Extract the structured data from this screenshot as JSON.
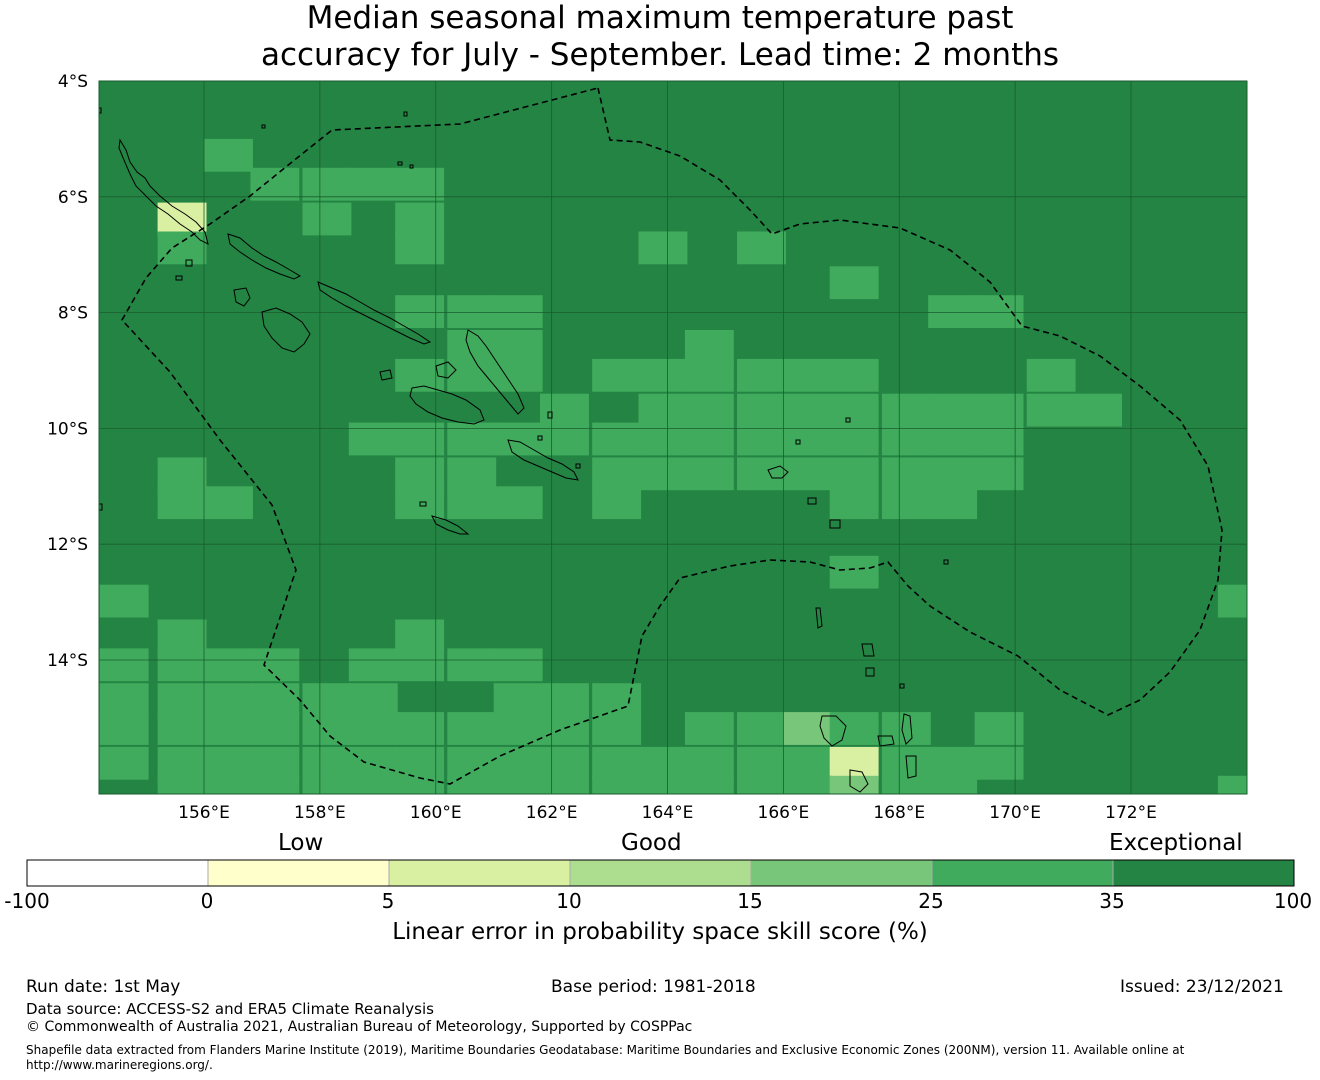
{
  "title": {
    "line1": "Median seasonal maximum temperature past",
    "line2": "accuracy for July - September. Lead time: 2 months"
  },
  "map": {
    "lon_range": [
      154.2,
      174.0
    ],
    "lat_range": [
      -4.0,
      -16.3
    ],
    "lat_ticks": [
      {
        "value": -4,
        "label": "4°S"
      },
      {
        "value": -6,
        "label": "6°S"
      },
      {
        "value": -8,
        "label": "8°S"
      },
      {
        "value": -10,
        "label": "10°S"
      },
      {
        "value": -12,
        "label": "12°S"
      },
      {
        "value": -14,
        "label": "14°S"
      }
    ],
    "lon_ticks": [
      {
        "value": 156,
        "label": "156°E"
      },
      {
        "value": 158,
        "label": "158°E"
      },
      {
        "value": 160,
        "label": "160°E"
      },
      {
        "value": 162,
        "label": "162°E"
      },
      {
        "value": 164,
        "label": "164°E"
      },
      {
        "value": 166,
        "label": "166°E"
      },
      {
        "value": 168,
        "label": "168°E"
      },
      {
        "value": 170,
        "label": "170°E"
      },
      {
        "value": 172,
        "label": "172°E"
      }
    ],
    "colors": {
      "background": "#238443",
      "grid": "#1a5c2e",
      "eez": "#000000",
      "coast": "#000000"
    }
  },
  "colorbar": {
    "words": [
      "Low",
      "Good",
      "Exceptional"
    ],
    "bins": [
      {
        "from": -100,
        "to": 0,
        "color": "#ffffff"
      },
      {
        "from": 0,
        "to": 5,
        "color": "#ffffcc"
      },
      {
        "from": 5,
        "to": 10,
        "color": "#d9f0a3"
      },
      {
        "from": 10,
        "to": 15,
        "color": "#addd8e"
      },
      {
        "from": 15,
        "to": 25,
        "color": "#78c679"
      },
      {
        "from": 25,
        "to": 35,
        "color": "#41ab5d"
      },
      {
        "from": 35,
        "to": 100,
        "color": "#238443"
      }
    ],
    "tick_labels": [
      "-100",
      "0",
      "5",
      "10",
      "15",
      "25",
      "35",
      "100"
    ],
    "label": "Linear error in probability space skill score (%)"
  },
  "footer": {
    "run_date": "Run date: 1st May",
    "base_period": "Base period: 1981-2018",
    "issued": "Issued: 23/12/2021",
    "data_source": "Data source: ACCESS-S2 and ERA5 Climate Reanalysis",
    "copyright": "© Commonwealth of Australia 2021, Australian Bureau of Meteorology, Supported by COSPPac",
    "shapefile_line1": "Shapefile data extracted from Flanders Marine Institute (2019), Maritime Boundaries Geodatabase: Maritime Boundaries and Exclusive Economic Zones (200NM), version 11. Available online at",
    "shapefile_line2": "http://www.marineregions.org/."
  },
  "grid_cells": {
    "lon0": 154.2,
    "lat0": -4.0,
    "dlon": 0.833,
    "dlat": 0.556,
    "c25": [
      [
        5,
        2
      ],
      [
        6,
        2
      ],
      [
        7,
        2
      ],
      [
        8,
        2
      ],
      [
        9,
        2
      ],
      [
        10,
        2
      ],
      [
        11,
        2
      ],
      [
        12,
        2
      ],
      [
        13,
        2
      ],
      [
        14,
        2
      ],
      [
        15,
        2
      ],
      [
        16,
        2
      ],
      [
        17,
        2
      ],
      [
        18,
        2
      ],
      [
        19,
        2
      ],
      [
        20,
        2
      ],
      [
        21,
        2
      ],
      [
        22,
        2
      ],
      [
        23,
        2
      ],
      [
        24,
        2
      ],
      [
        25,
        2
      ],
      [
        26,
        2
      ],
      [
        27,
        2
      ],
      [
        28,
        2
      ],
      [
        29,
        2
      ],
      [
        30,
        2
      ],
      [
        31,
        2
      ],
      [
        32,
        2
      ],
      [
        33,
        2
      ],
      [
        34,
        2
      ],
      [
        35,
        2
      ],
      [
        36,
        2
      ],
      [
        37,
        2
      ],
      [
        38,
        2
      ],
      [
        39,
        2
      ],
      [
        40,
        2
      ],
      [
        41,
        2
      ],
      [
        42,
        2
      ],
      [
        43,
        2
      ],
      [
        44,
        2
      ],
      [
        45,
        2
      ],
      [
        46,
        2
      ],
      [
        47,
        2
      ],
      [
        48,
        2
      ],
      [
        49,
        2
      ],
      [
        50,
        2
      ],
      [
        51,
        2
      ],
      [
        52,
        2
      ],
      [
        53,
        2
      ],
      [
        54,
        2
      ],
      [
        55,
        2
      ],
      [
        56,
        2
      ],
      [
        57,
        2
      ],
      [
        58,
        2
      ],
      [
        59,
        2
      ],
      [
        60,
        2
      ],
      [
        61,
        2
      ],
      [
        62,
        2
      ],
      [
        63,
        2
      ],
      [
        64,
        2
      ],
      [
        65,
        2
      ],
      [
        66,
        2
      ],
      [
        67,
        2
      ],
      [
        68,
        2
      ],
      [
        69,
        2
      ],
      [
        70,
        2
      ],
      [
        71,
        2
      ],
      [
        72,
        2
      ],
      [
        73,
        2
      ],
      [
        74,
        2
      ],
      [
        75,
        2
      ],
      [
        76,
        2
      ],
      [
        77,
        2
      ],
      [
        78,
        2
      ],
      [
        79,
        2
      ],
      [
        80,
        2
      ]
    ],
    "cells": [
      {
        "lon": 156.0,
        "lat": -5.0,
        "v": 30
      },
      {
        "lon": 156.8,
        "lat": -5.5,
        "v": 30
      },
      {
        "lon": 157.7,
        "lat": -5.5,
        "v": 30
      },
      {
        "lon": 158.5,
        "lat": -5.5,
        "v": 30
      },
      {
        "lon": 159.3,
        "lat": -5.5,
        "v": 30
      },
      {
        "lon": 155.2,
        "lat": -6.1,
        "v": 8
      },
      {
        "lon": 155.2,
        "lat": -6.6,
        "v": 30
      },
      {
        "lon": 157.7,
        "lat": -6.1,
        "v": 30
      },
      {
        "lon": 159.3,
        "lat": -6.1,
        "v": 30
      },
      {
        "lon": 159.3,
        "lat": -6.6,
        "v": 30
      },
      {
        "lon": 163.5,
        "lat": -6.6,
        "v": 30
      },
      {
        "lon": 165.2,
        "lat": -6.6,
        "v": 30
      },
      {
        "lon": 166.8,
        "lat": -7.2,
        "v": 30
      },
      {
        "lon": 159.3,
        "lat": -7.7,
        "v": 30
      },
      {
        "lon": 160.2,
        "lat": -7.7,
        "v": 30
      },
      {
        "lon": 161.0,
        "lat": -7.7,
        "v": 30
      },
      {
        "lon": 161.0,
        "lat": -8.3,
        "v": 30
      },
      {
        "lon": 160.2,
        "lat": -8.3,
        "v": 30
      },
      {
        "lon": 168.5,
        "lat": -7.7,
        "v": 30
      },
      {
        "lon": 169.3,
        "lat": -7.7,
        "v": 30
      },
      {
        "lon": 164.3,
        "lat": -8.3,
        "v": 30
      },
      {
        "lon": 159.3,
        "lat": -8.8,
        "v": 30
      },
      {
        "lon": 160.2,
        "lat": -8.8,
        "v": 30
      },
      {
        "lon": 161.0,
        "lat": -8.8,
        "v": 30
      },
      {
        "lon": 162.7,
        "lat": -8.8,
        "v": 30
      },
      {
        "lon": 163.5,
        "lat": -8.8,
        "v": 30
      },
      {
        "lon": 164.3,
        "lat": -8.8,
        "v": 30
      },
      {
        "lon": 165.2,
        "lat": -8.8,
        "v": 30
      },
      {
        "lon": 166.0,
        "lat": -8.8,
        "v": 30
      },
      {
        "lon": 166.8,
        "lat": -8.8,
        "v": 30
      },
      {
        "lon": 170.2,
        "lat": -8.8,
        "v": 30
      },
      {
        "lon": 161.8,
        "lat": -9.4,
        "v": 30
      },
      {
        "lon": 163.5,
        "lat": -9.4,
        "v": 30
      },
      {
        "lon": 164.3,
        "lat": -9.4,
        "v": 30
      },
      {
        "lon": 165.2,
        "lat": -9.4,
        "v": 30
      },
      {
        "lon": 166.0,
        "lat": -9.4,
        "v": 30
      },
      {
        "lon": 166.8,
        "lat": -9.4,
        "v": 30
      },
      {
        "lon": 167.7,
        "lat": -9.4,
        "v": 30
      },
      {
        "lon": 168.5,
        "lat": -9.4,
        "v": 30
      },
      {
        "lon": 169.3,
        "lat": -9.4,
        "v": 30
      },
      {
        "lon": 170.2,
        "lat": -9.4,
        "v": 30
      },
      {
        "lon": 171.0,
        "lat": -9.4,
        "v": 30
      },
      {
        "lon": 158.5,
        "lat": -9.9,
        "v": 30
      },
      {
        "lon": 159.3,
        "lat": -9.9,
        "v": 30
      },
      {
        "lon": 160.2,
        "lat": -9.9,
        "v": 30
      },
      {
        "lon": 161.0,
        "lat": -9.9,
        "v": 30
      },
      {
        "lon": 161.8,
        "lat": -9.9,
        "v": 30
      },
      {
        "lon": 162.7,
        "lat": -9.9,
        "v": 30
      },
      {
        "lon": 163.5,
        "lat": -9.9,
        "v": 30
      },
      {
        "lon": 164.3,
        "lat": -9.9,
        "v": 30
      },
      {
        "lon": 165.2,
        "lat": -9.9,
        "v": 30
      },
      {
        "lon": 166.0,
        "lat": -9.9,
        "v": 30
      },
      {
        "lon": 166.8,
        "lat": -9.9,
        "v": 30
      },
      {
        "lon": 167.7,
        "lat": -9.9,
        "v": 30
      },
      {
        "lon": 168.5,
        "lat": -9.9,
        "v": 30
      },
      {
        "lon": 169.3,
        "lat": -9.9,
        "v": 30
      },
      {
        "lon": 155.2,
        "lat": -10.5,
        "v": 30
      },
      {
        "lon": 159.3,
        "lat": -10.5,
        "v": 30
      },
      {
        "lon": 160.2,
        "lat": -10.5,
        "v": 30
      },
      {
        "lon": 162.7,
        "lat": -10.5,
        "v": 30
      },
      {
        "lon": 163.5,
        "lat": -10.5,
        "v": 30
      },
      {
        "lon": 164.3,
        "lat": -10.5,
        "v": 30
      },
      {
        "lon": 165.2,
        "lat": -10.5,
        "v": 30
      },
      {
        "lon": 166.0,
        "lat": -10.5,
        "v": 30
      },
      {
        "lon": 166.8,
        "lat": -10.5,
        "v": 30
      },
      {
        "lon": 167.7,
        "lat": -10.5,
        "v": 30
      },
      {
        "lon": 168.5,
        "lat": -10.5,
        "v": 30
      },
      {
        "lon": 169.3,
        "lat": -10.5,
        "v": 30
      },
      {
        "lon": 155.2,
        "lat": -11.0,
        "v": 30
      },
      {
        "lon": 156.0,
        "lat": -11.0,
        "v": 30
      },
      {
        "lon": 159.3,
        "lat": -11.0,
        "v": 30
      },
      {
        "lon": 160.2,
        "lat": -11.0,
        "v": 30
      },
      {
        "lon": 161.0,
        "lat": -11.0,
        "v": 30
      },
      {
        "lon": 162.7,
        "lat": -11.0,
        "v": 30
      },
      {
        "lon": 166.8,
        "lat": -11.0,
        "v": 30
      },
      {
        "lon": 167.7,
        "lat": -11.0,
        "v": 30
      },
      {
        "lon": 168.5,
        "lat": -11.0,
        "v": 30
      },
      {
        "lon": 166.8,
        "lat": -12.2,
        "v": 30
      },
      {
        "lon": 154.2,
        "lat": -12.7,
        "v": 30
      },
      {
        "lon": 173.5,
        "lat": -12.7,
        "v": 30
      },
      {
        "lon": 155.2,
        "lat": -13.3,
        "v": 30
      },
      {
        "lon": 159.3,
        "lat": -13.3,
        "v": 30
      },
      {
        "lon": 154.2,
        "lat": -13.8,
        "v": 30
      },
      {
        "lon": 155.2,
        "lat": -13.8,
        "v": 30
      },
      {
        "lon": 156.0,
        "lat": -13.8,
        "v": 30
      },
      {
        "lon": 156.8,
        "lat": -13.8,
        "v": 30
      },
      {
        "lon": 158.5,
        "lat": -13.8,
        "v": 30
      },
      {
        "lon": 159.3,
        "lat": -13.8,
        "v": 30
      },
      {
        "lon": 160.2,
        "lat": -13.8,
        "v": 30
      },
      {
        "lon": 161.0,
        "lat": -13.8,
        "v": 30
      },
      {
        "lon": 154.2,
        "lat": -14.4,
        "v": 30
      },
      {
        "lon": 155.2,
        "lat": -14.4,
        "v": 30
      },
      {
        "lon": 156.0,
        "lat": -14.4,
        "v": 30
      },
      {
        "lon": 156.8,
        "lat": -14.4,
        "v": 30
      },
      {
        "lon": 157.7,
        "lat": -14.4,
        "v": 30
      },
      {
        "lon": 158.5,
        "lat": -14.4,
        "v": 30
      },
      {
        "lon": 161.0,
        "lat": -14.4,
        "v": 30
      },
      {
        "lon": 161.8,
        "lat": -14.4,
        "v": 30
      },
      {
        "lon": 162.7,
        "lat": -14.4,
        "v": 30
      },
      {
        "lon": 154.2,
        "lat": -14.9,
        "v": 30
      },
      {
        "lon": 155.2,
        "lat": -14.9,
        "v": 30
      },
      {
        "lon": 156.0,
        "lat": -14.9,
        "v": 30
      },
      {
        "lon": 156.8,
        "lat": -14.9,
        "v": 30
      },
      {
        "lon": 157.7,
        "lat": -14.9,
        "v": 30
      },
      {
        "lon": 158.5,
        "lat": -14.9,
        "v": 30
      },
      {
        "lon": 159.3,
        "lat": -14.9,
        "v": 30
      },
      {
        "lon": 160.2,
        "lat": -14.9,
        "v": 30
      },
      {
        "lon": 161.0,
        "lat": -14.9,
        "v": 30
      },
      {
        "lon": 161.8,
        "lat": -14.9,
        "v": 30
      },
      {
        "lon": 162.7,
        "lat": -14.9,
        "v": 30
      },
      {
        "lon": 164.3,
        "lat": -14.9,
        "v": 30
      },
      {
        "lon": 165.2,
        "lat": -14.9,
        "v": 30
      },
      {
        "lon": 166.0,
        "lat": -14.9,
        "v": 20
      },
      {
        "lon": 166.8,
        "lat": -14.9,
        "v": 30
      },
      {
        "lon": 167.7,
        "lat": -14.9,
        "v": 30
      },
      {
        "lon": 169.3,
        "lat": -14.9,
        "v": 30
      },
      {
        "lon": 154.2,
        "lat": -15.5,
        "v": 30
      },
      {
        "lon": 155.2,
        "lat": -15.5,
        "v": 30
      },
      {
        "lon": 156.0,
        "lat": -15.5,
        "v": 30
      },
      {
        "lon": 156.8,
        "lat": -15.5,
        "v": 30
      },
      {
        "lon": 157.7,
        "lat": -15.5,
        "v": 30
      },
      {
        "lon": 158.5,
        "lat": -15.5,
        "v": 30
      },
      {
        "lon": 159.3,
        "lat": -15.5,
        "v": 30
      },
      {
        "lon": 160.2,
        "lat": -15.5,
        "v": 30
      },
      {
        "lon": 161.0,
        "lat": -15.5,
        "v": 30
      },
      {
        "lon": 161.8,
        "lat": -15.5,
        "v": 30
      },
      {
        "lon": 162.7,
        "lat": -15.5,
        "v": 30
      },
      {
        "lon": 163.5,
        "lat": -15.5,
        "v": 30
      },
      {
        "lon": 164.3,
        "lat": -15.5,
        "v": 30
      },
      {
        "lon": 165.2,
        "lat": -15.5,
        "v": 30
      },
      {
        "lon": 166.0,
        "lat": -15.5,
        "v": 30
      },
      {
        "lon": 166.8,
        "lat": -15.5,
        "v": 8
      },
      {
        "lon": 167.7,
        "lat": -15.5,
        "v": 30
      },
      {
        "lon": 168.5,
        "lat": -15.5,
        "v": 30
      },
      {
        "lon": 169.3,
        "lat": -15.5,
        "v": 30
      },
      {
        "lon": 155.2,
        "lat": -16.0,
        "v": 30
      },
      {
        "lon": 156.0,
        "lat": -16.0,
        "v": 30
      },
      {
        "lon": 156.8,
        "lat": -16.0,
        "v": 30
      },
      {
        "lon": 157.7,
        "lat": -16.0,
        "v": 30
      },
      {
        "lon": 158.5,
        "lat": -16.0,
        "v": 30
      },
      {
        "lon": 159.3,
        "lat": -16.0,
        "v": 30
      },
      {
        "lon": 160.2,
        "lat": -16.0,
        "v": 30
      },
      {
        "lon": 161.0,
        "lat": -16.0,
        "v": 30
      },
      {
        "lon": 161.8,
        "lat": -16.0,
        "v": 30
      },
      {
        "lon": 162.7,
        "lat": -16.0,
        "v": 30
      },
      {
        "lon": 163.5,
        "lat": -16.0,
        "v": 30
      },
      {
        "lon": 164.3,
        "lat": -16.0,
        "v": 30
      },
      {
        "lon": 165.2,
        "lat": -16.0,
        "v": 30
      },
      {
        "lon": 166.0,
        "lat": -16.0,
        "v": 30
      },
      {
        "lon": 166.8,
        "lat": -16.0,
        "v": 20
      },
      {
        "lon": 167.7,
        "lat": -16.0,
        "v": 30
      },
      {
        "lon": 168.5,
        "lat": -16.0,
        "v": 30
      },
      {
        "lon": 173.5,
        "lat": -16.0,
        "v": 30
      }
    ]
  }
}
